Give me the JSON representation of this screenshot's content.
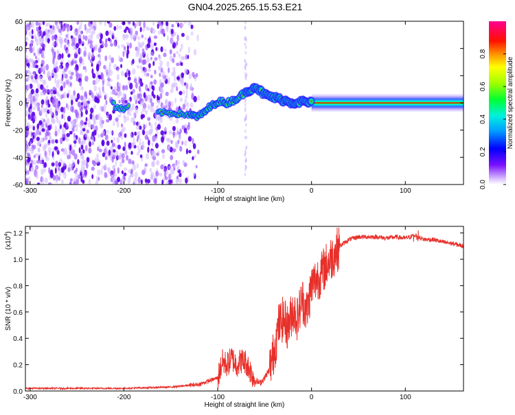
{
  "title": "GN04.2025.265.15.53.E21",
  "chart_data": [
    {
      "type": "heatmap",
      "xlabel": "Height of straight line (km)",
      "ylabel": "Frequency (Hz)",
      "xlim": [
        -305,
        162
      ],
      "ylim": [
        -60,
        60
      ],
      "xticks": [
        -300,
        -200,
        -100,
        0,
        100
      ],
      "xtick_labels": [
        "-300",
        "-200",
        "-100",
        "0",
        "100"
      ],
      "yticks": [
        -60,
        -40,
        -20,
        0,
        20,
        40,
        60
      ],
      "ytick_labels": [
        "-60",
        "-40",
        "-20",
        "0",
        "20",
        "40",
        "60"
      ],
      "colorbar": {
        "label": "Normalized spectral amplitude",
        "range": [
          0,
          1
        ],
        "ticks": [
          0.0,
          0.2,
          0.4,
          0.6,
          0.8
        ],
        "tick_labels": [
          "0.0",
          "0.2",
          "0.4",
          "0.6",
          "0.8"
        ],
        "colors": [
          "#e0c8ff",
          "#6a00ff",
          "#0000ff",
          "#00b4ff",
          "#00ffc8",
          "#00ff00",
          "#c8ff00",
          "#ffff00",
          "#ff8000",
          "#ff0000",
          "#ff0080"
        ]
      },
      "ridge": {
        "name": "Doppler ridge",
        "x": [
          -210,
          -200,
          -190,
          -180,
          -160,
          -140,
          -130,
          -120,
          -110,
          -100,
          -90,
          -80,
          -70,
          -60,
          -50,
          -40,
          -30,
          -20,
          -10,
          0,
          20,
          50,
          100,
          160
        ],
        "y": [
          -3,
          -5,
          -2,
          -6,
          -7,
          -8,
          -9,
          -10,
          -4,
          1,
          0,
          3,
          8,
          12,
          6,
          4,
          2,
          0,
          1,
          0,
          0,
          0,
          0,
          0
        ]
      }
    },
    {
      "type": "line",
      "xlabel": "Height of straight line (km)",
      "ylabel": "SNR (10 * v/v)",
      "yscale_label": "(x10",
      "yscale_exponent": "4",
      "yscale_close": ")",
      "xlim": [
        -305,
        162
      ],
      "ylim": [
        0,
        1.25
      ],
      "xticks": [
        -300,
        -200,
        -100,
        0,
        100
      ],
      "xtick_labels": [
        "-300",
        "-200",
        "-100",
        "0",
        "100"
      ],
      "yticks": [
        0,
        0.2,
        0.4,
        0.6,
        0.8,
        1.0,
        1.2
      ],
      "ytick_labels": [
        "0.0",
        "0.2",
        "0.4",
        "0.6",
        "0.8",
        "1.0",
        "1.2"
      ],
      "color": "#e8302a",
      "series": [
        {
          "name": "SNR",
          "x": [
            -305,
            -250,
            -200,
            -150,
            -120,
            -100,
            -95,
            -90,
            -85,
            -80,
            -75,
            -70,
            -65,
            -60,
            -55,
            -50,
            -45,
            -40,
            -35,
            -30,
            -25,
            -20,
            -15,
            -10,
            -5,
            0,
            5,
            10,
            15,
            20,
            25,
            30,
            40,
            50,
            60,
            70,
            80,
            90,
            100,
            110,
            120,
            130,
            140,
            150,
            162
          ],
          "y": [
            0.02,
            0.02,
            0.02,
            0.03,
            0.05,
            0.1,
            0.22,
            0.2,
            0.25,
            0.2,
            0.23,
            0.22,
            0.15,
            0.08,
            0.06,
            0.1,
            0.16,
            0.3,
            0.5,
            0.55,
            0.48,
            0.62,
            0.55,
            0.7,
            0.6,
            0.8,
            0.85,
            0.88,
            0.95,
            1.0,
            1.05,
            1.1,
            1.15,
            1.17,
            1.17,
            1.17,
            1.16,
            1.17,
            1.16,
            1.18,
            1.15,
            1.15,
            1.13,
            1.12,
            1.1
          ]
        }
      ]
    }
  ]
}
